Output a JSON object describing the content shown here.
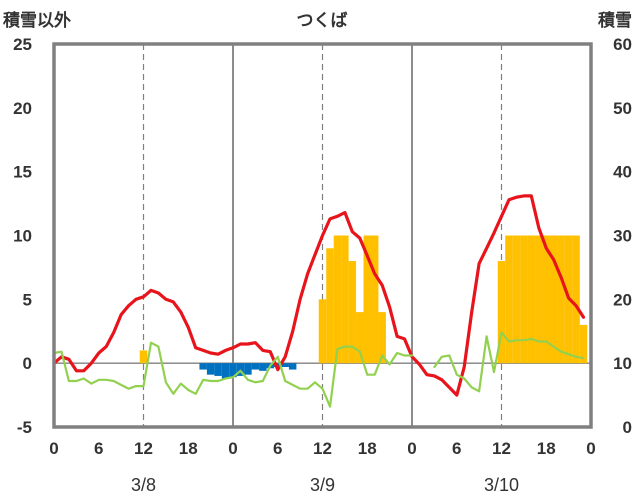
{
  "chart_data": {
    "type": "bar+line",
    "title": "つくば",
    "ylabel_left": "積雪以外",
    "ylabel_right": "積雪",
    "ylim_left": [
      -5,
      25
    ],
    "yticks_left": [
      -5,
      0,
      5,
      10,
      15,
      20,
      25
    ],
    "ylim_right": [
      0,
      60
    ],
    "yticks_right": [
      0,
      10,
      20,
      30,
      40,
      50,
      60
    ],
    "x_hours": [
      0,
      72
    ],
    "xtick_labels": [
      "0",
      "6",
      "12",
      "18",
      "0",
      "6",
      "12",
      "18",
      "0",
      "6",
      "12",
      "18",
      "0"
    ],
    "date_labels": [
      "3/8",
      "3/9",
      "3/10"
    ],
    "grid": "vertical lines every 6 h (dashed at 12 h, solid at day boundaries)",
    "colors": {
      "temperature": "#e8141b",
      "green_line": "#92d050",
      "snowfall": "#ffc000",
      "precip": "#0070c0",
      "snow_depth": "#7030a0",
      "frame": "#808080"
    },
    "series": [
      {
        "name": "",
        "kind": "line",
        "axis": "left",
        "color": "#e8141b",
        "x": [
          0,
          1,
          2,
          3,
          4,
          5,
          6,
          7,
          8,
          9,
          10,
          11,
          12,
          13,
          14,
          15,
          16,
          17,
          18,
          19,
          20,
          21,
          22,
          23,
          24,
          25,
          26,
          27,
          28,
          29,
          30,
          31,
          32,
          33,
          34,
          35,
          36,
          37,
          38,
          39,
          40,
          41,
          42,
          43,
          44,
          45,
          46,
          47,
          48,
          49,
          50,
          51,
          52,
          53,
          54,
          55,
          56,
          57,
          58,
          59,
          60,
          61,
          62,
          63,
          64,
          65,
          66,
          67,
          68,
          69,
          70,
          71
        ],
        "values": [
          0,
          0.5,
          0.3,
          -0.6,
          -0.6,
          0,
          0.8,
          1.3,
          2.4,
          3.8,
          4.5,
          5.0,
          5.2,
          5.7,
          5.5,
          5.0,
          4.8,
          4.0,
          2.8,
          1.2,
          1.0,
          0.8,
          0.7,
          1.0,
          1.2,
          1.5,
          1.5,
          1.6,
          1.0,
          0.9,
          -0.5,
          0.5,
          2.5,
          5.0,
          7.0,
          8.5,
          10.0,
          11.3,
          11.5,
          11.8,
          10.3,
          9.8,
          8.4,
          7.0,
          6.1,
          4.4,
          2.1,
          1.9,
          0.5,
          -0.1,
          -0.9,
          -1.0,
          -1.3,
          -1.9,
          -2.5,
          -0.3,
          4.0,
          7.8,
          9.0,
          10.2,
          11.5,
          12.8,
          13.0,
          13.1,
          13.1,
          10.6,
          9.0,
          8.1,
          6.7,
          5.1,
          4.5,
          3.6
        ]
      },
      {
        "name": "",
        "kind": "line",
        "axis": "left",
        "color": "#92d050",
        "segments": [
          {
            "x": [
              0,
              1,
              2,
              3,
              4,
              5,
              6,
              7,
              8,
              9,
              10,
              11,
              12,
              13,
              14,
              15,
              16,
              17,
              18,
              19,
              20,
              21,
              22,
              23,
              24,
              25,
              26,
              27,
              28,
              29,
              30,
              31,
              32,
              33,
              34,
              35,
              36,
              37,
              38,
              39,
              40,
              41,
              42,
              43,
              44,
              45,
              46,
              47,
              48
            ],
            "values": [
              0.8,
              0.9,
              -1.4,
              -1.4,
              -1.2,
              -1.6,
              -1.3,
              -1.3,
              -1.4,
              -1.7,
              -2.0,
              -1.8,
              -1.8,
              1.6,
              1.3,
              -1.5,
              -2.4,
              -1.6,
              -2.1,
              -2.4,
              -1.3,
              -1.4,
              -1.4,
              -1.2,
              -1.1,
              -0.6,
              -1.3,
              -1.5,
              -1.4,
              -0.2,
              0.5,
              -1.4,
              -1.7,
              -2.0,
              -2.0,
              -1.5,
              -2.0,
              -3.4,
              1.1,
              1.3,
              1.3,
              0.9,
              -0.9,
              -0.9,
              0.6,
              -0.1,
              0.8,
              0.6,
              0.6
            ]
          },
          {
            "x": [
              51,
              52,
              53,
              54,
              55,
              56,
              57,
              58,
              59,
              60,
              61,
              62,
              63,
              64,
              65,
              66,
              67,
              68,
              69,
              70,
              71
            ],
            "values": [
              -0.3,
              0.5,
              0.6,
              -0.9,
              -1.2,
              -1.9,
              -2.2,
              2.1,
              -0.7,
              2.4,
              1.7,
              1.8,
              1.8,
              1.9,
              1.7,
              1.7,
              1.3,
              0.9,
              0.7,
              0.5,
              0.4
            ]
          }
        ]
      },
      {
        "name": "",
        "kind": "bar",
        "axis": "left",
        "color": "#ffc000",
        "x": [
          12,
          36,
          37,
          38,
          39,
          40,
          41,
          42,
          43,
          44,
          60,
          61,
          62,
          63,
          64,
          65,
          66,
          67,
          68,
          69,
          70,
          71
        ],
        "values": [
          1.0,
          5.0,
          9.0,
          10.0,
          10.0,
          8.0,
          4.0,
          10.0,
          10.0,
          4.0,
          8.0,
          10.0,
          10.0,
          10.0,
          10.0,
          10.0,
          10.0,
          10.0,
          10.0,
          10.0,
          10.0,
          3.0
        ]
      },
      {
        "name": "",
        "kind": "bar",
        "axis": "left",
        "color": "#0070c0",
        "x": [
          20,
          21,
          22,
          23,
          24,
          25,
          26,
          27,
          28,
          29,
          30,
          31,
          32
        ],
        "values": [
          -0.5,
          -0.9,
          -1.0,
          -1.2,
          -1.1,
          -1.0,
          -0.9,
          -0.5,
          -0.6,
          -0.4,
          -0.3,
          -0.3,
          -0.5
        ]
      },
      {
        "name": "",
        "kind": "line",
        "axis": "right",
        "color": "#7030a0",
        "x": [
          0,
          72
        ],
        "values": [
          0,
          0
        ]
      }
    ]
  }
}
